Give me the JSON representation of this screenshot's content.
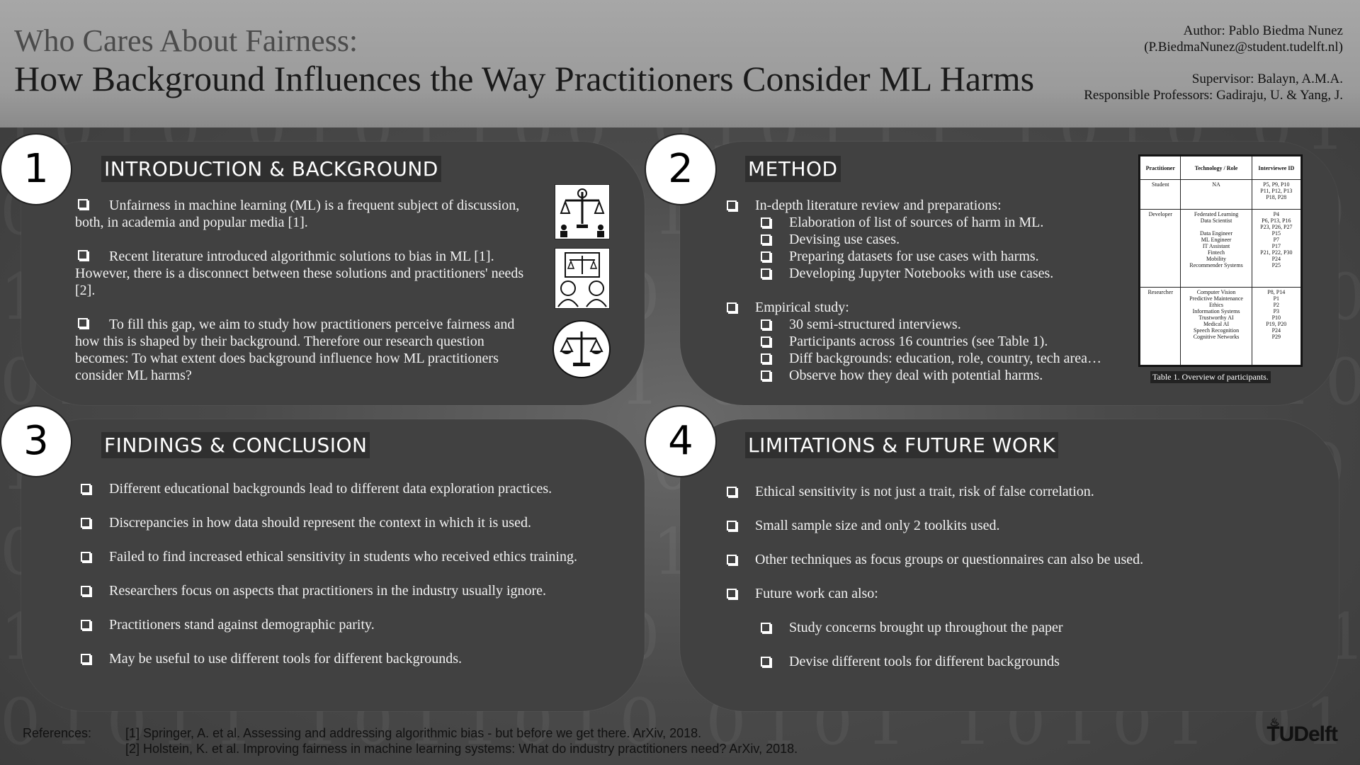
{
  "header": {
    "title_line1": "Who Cares About Fairness:",
    "title_line2": "How Background Influences the Way Practitioners Consider ML Harms",
    "author": "Author: Pablo Biedma Nunez",
    "email": "(P.BiedmaNunez@student.tudelft.nl)",
    "supervisor": "Supervisor: Balayn, A.M.A.",
    "professors": "Responsible Professors: Gadiraju, U. & Yang, J."
  },
  "sections": {
    "intro": {
      "number": "1",
      "title": "INTRODUCTION & BACKGROUND",
      "paragraphs": [
        "Unfairness in machine learning (ML) is a frequent subject of discussion, both, in academia and popular media [1].",
        "Recent literature introduced algorithmic solutions to bias in ML [1]. However, there is a disconnect between these solutions and practitioners' needs [2].",
        "To fill this gap, we aim to study how practitioners perceive fairness and how this is shaped by their background. Therefore our research question becomes: To what extent does background influence how ML practitioners consider ML harms?"
      ]
    },
    "method": {
      "number": "2",
      "title": "METHOD",
      "groups": [
        {
          "head": "In-depth literature review and preparations:",
          "items": [
            "Elaboration of list of sources of harm in ML.",
            "Devising use cases.",
            "Preparing datasets for use cases with harms.",
            "Developing Jupyter Notebooks with use cases."
          ]
        },
        {
          "head": "Empirical study:",
          "items": [
            "30 semi-structured interviews.",
            "Participants across 16 countries (see Table 1).",
            "Diff backgrounds: education, role, country, tech area…",
            "Observe how they deal with potential harms."
          ]
        }
      ],
      "table": {
        "headers": [
          "Practitioner",
          "Technology / Role",
          "Interviewee ID"
        ],
        "rows": [
          {
            "practitioner": "Student",
            "roles": [
              "NA"
            ],
            "ids": [
              "P5, P9, P10",
              "P11, P12, P13",
              "P18, P28"
            ]
          },
          {
            "practitioner": "Developer",
            "roles": [
              "Federated Learning",
              "Data Scientist",
              "",
              "Data Engineer",
              "ML Engineer",
              "IT Assistant",
              "Fintech",
              "Mobility",
              "Recommender Systems"
            ],
            "ids": [
              "P4",
              "P6, P13, P16",
              "P23, P26, P27",
              "P15",
              "P7",
              "P17",
              "P21, P22, P30",
              "P24",
              "P25"
            ]
          },
          {
            "practitioner": "Researcher",
            "roles": [
              "Computer Vision",
              "Predictive Maintenance",
              "Ethics",
              "Information Systems",
              "Trustworthy AI",
              "Medical AI",
              "Speech Recognition",
              "Cognitive Networks"
            ],
            "ids": [
              "P8, P14",
              "P1",
              "P2",
              "P3",
              "P10",
              "P19, P20",
              "P24",
              "P29"
            ]
          }
        ],
        "caption": "Table 1. Overview of participants."
      }
    },
    "findings": {
      "number": "3",
      "title": "FINDINGS & CONCLUSION",
      "items": [
        "Different educational backgrounds lead to different data exploration practices.",
        "Discrepancies in how data should represent the context in which it is used.",
        "Failed to find increased ethical sensitivity in students who received ethics training.",
        "Researchers focus on aspects that practitioners in the industry usually ignore.",
        "Practitioners stand against demographic parity.",
        "May be useful to use different tools for different backgrounds."
      ]
    },
    "limitations": {
      "number": "4",
      "title": "LIMITATIONS & FUTURE WORK",
      "items": [
        "Ethical sensitivity is not just a trait, risk of false correlation.",
        "Small sample size and only 2 toolkits used.",
        "Other techniques as focus groups or questionnaires can also be used.",
        "Future work can also:"
      ],
      "subitems": [
        "Study concerns brought up throughout the paper",
        "Devise different tools for different backgrounds"
      ]
    }
  },
  "references": {
    "label": "References:",
    "items": [
      "[1] Springer, A. et al. Assessing and addressing algorithmic bias - but before we get there. ArXiv, 2018.",
      "[2] Holstein, K. et al. Improving fairness in machine learning systems: What do industry practitioners need? ArXiv, 2018."
    ]
  },
  "logo": {
    "text": "TUDelft"
  },
  "icons": [
    "scales-people-icon",
    "scales-faces-icon",
    "balance-scale-icon"
  ]
}
